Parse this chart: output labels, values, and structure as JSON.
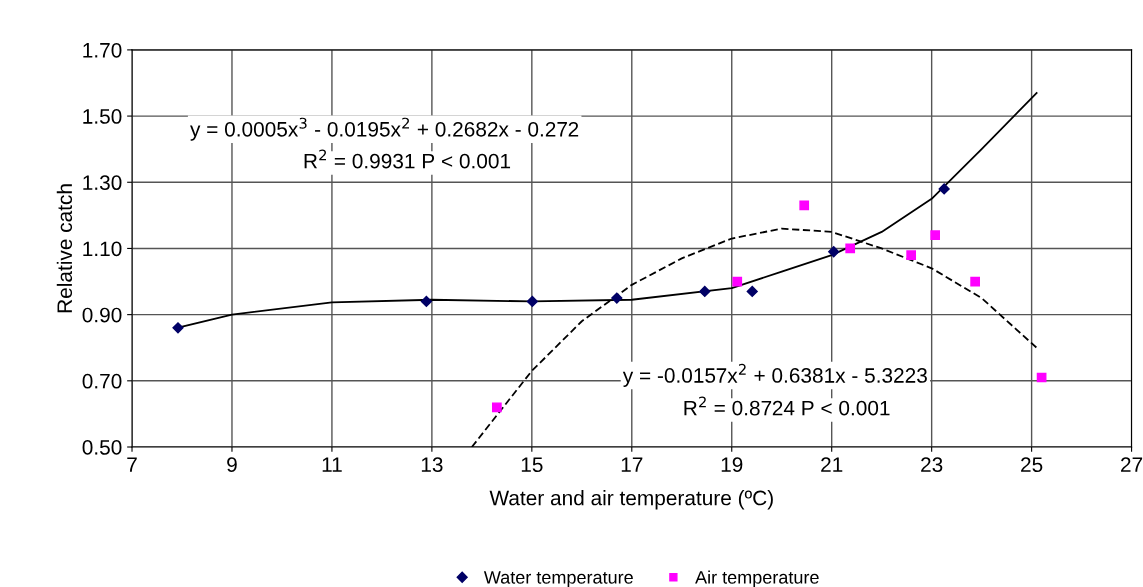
{
  "chart_data": {
    "type": "scatter",
    "xlabel": "Water and air temperature (ºC)",
    "ylabel": "Relative catch",
    "xlim": [
      7,
      27
    ],
    "xticks": [
      7,
      9,
      11,
      13,
      15,
      17,
      19,
      21,
      23,
      25,
      27
    ],
    "ylim": [
      0.5,
      1.7
    ],
    "yticks": [
      {
        "value": 0.5,
        "label": "0.50"
      },
      {
        "value": 0.7,
        "label": "0.70"
      },
      {
        "value": 0.9,
        "label": "0.90"
      },
      {
        "value": 1.1,
        "label": "1.10"
      },
      {
        "value": 1.3,
        "label": "1.30"
      },
      {
        "value": 1.5,
        "label": "1.50"
      },
      {
        "value": 1.7,
        "label": "1.70"
      }
    ],
    "grid": true,
    "legend": "bottom",
    "series": [
      {
        "name": "Water temperature",
        "marker": "diamond",
        "color": "#000066",
        "x": [
          7.92,
          12.89,
          15.01,
          16.7,
          18.46,
          19.41,
          21.04,
          23.25
        ],
        "values": [
          0.86,
          0.94,
          0.94,
          0.95,
          0.97,
          0.97,
          1.09,
          1.28
        ]
      },
      {
        "name": "Air temperature",
        "marker": "square",
        "color": "#ff00ff",
        "x": [
          14.3,
          19.11,
          20.45,
          21.37,
          22.59,
          23.07,
          23.87,
          25.2
        ],
        "values": [
          0.62,
          1.0,
          1.23,
          1.1,
          1.08,
          1.14,
          1.0,
          0.71
        ]
      },
      {
        "type": "line",
        "marker": "none",
        "line_style": "solid",
        "color": "#000000",
        "x": [
          7.9,
          9,
          11,
          13,
          15,
          17,
          19,
          20,
          21,
          22,
          23,
          24,
          25.1
        ],
        "values": [
          0.86,
          0.9,
          0.937,
          0.945,
          0.94,
          0.945,
          0.98,
          1.03,
          1.08,
          1.15,
          1.25,
          1.4,
          1.57
        ]
      },
      {
        "type": "line",
        "marker": "none",
        "line_style": "dashed",
        "color": "#000000",
        "x": [
          13.8,
          15,
          16,
          17,
          18,
          19,
          20,
          21,
          22,
          23,
          24,
          25.1
        ],
        "values": [
          0.5,
          0.73,
          0.88,
          0.99,
          1.07,
          1.13,
          1.16,
          1.15,
          1.1,
          1.04,
          0.95,
          0.8
        ]
      }
    ],
    "annotations": [
      "y = 0.0005x$^{3}$ - 0.0195x$^{2}$ + 0.2682x - 0.272",
      "R$^{2}$ = 0.9931 P < 0.001",
      "y = -0.0157x$^{2}$ + 0.6381x - 5.3223",
      "R$^{2}$ = 0.8724 P < 0.001"
    ]
  }
}
